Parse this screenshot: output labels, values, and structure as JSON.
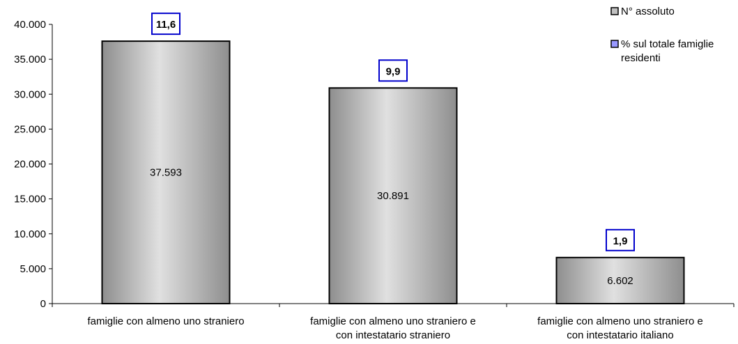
{
  "chart_data": {
    "type": "bar",
    "categories": [
      [
        "famiglie con almeno uno straniero"
      ],
      [
        "famiglie con almeno uno straniero e",
        "con intestatario straniero"
      ],
      [
        "famiglie con almeno uno straniero e",
        "con intestatario italiano"
      ]
    ],
    "series": [
      {
        "name": "N° assoluto",
        "values": [
          37593,
          30891,
          6602
        ],
        "labels": [
          "37.593",
          "30.891",
          "6.602"
        ]
      },
      {
        "name": "% sul totale famiglie residenti",
        "values": [
          11.6,
          9.9,
          1.9
        ],
        "labels": [
          "11,6",
          "9,9",
          "1,9"
        ]
      }
    ],
    "ylim": [
      0,
      40000
    ],
    "yticks": [
      0,
      5000,
      10000,
      15000,
      20000,
      25000,
      30000,
      35000,
      40000
    ],
    "ytick_labels": [
      "0",
      "5.000",
      "10.000",
      "15.000",
      "20.000",
      "25.000",
      "30.000",
      "35.000",
      "40.000"
    ],
    "legend": [
      {
        "lines": [
          "N° assoluto"
        ],
        "color": "#c0c0c0"
      },
      {
        "lines": [
          "% sul totale famiglie",
          "residenti"
        ],
        "color": "#9999ff"
      }
    ],
    "legend_position": "top-right",
    "grid": false,
    "colors": {
      "bar_edge": "#808080",
      "bar_light": "#e0e0e0",
      "pct_box_border": "#0000cc"
    }
  }
}
